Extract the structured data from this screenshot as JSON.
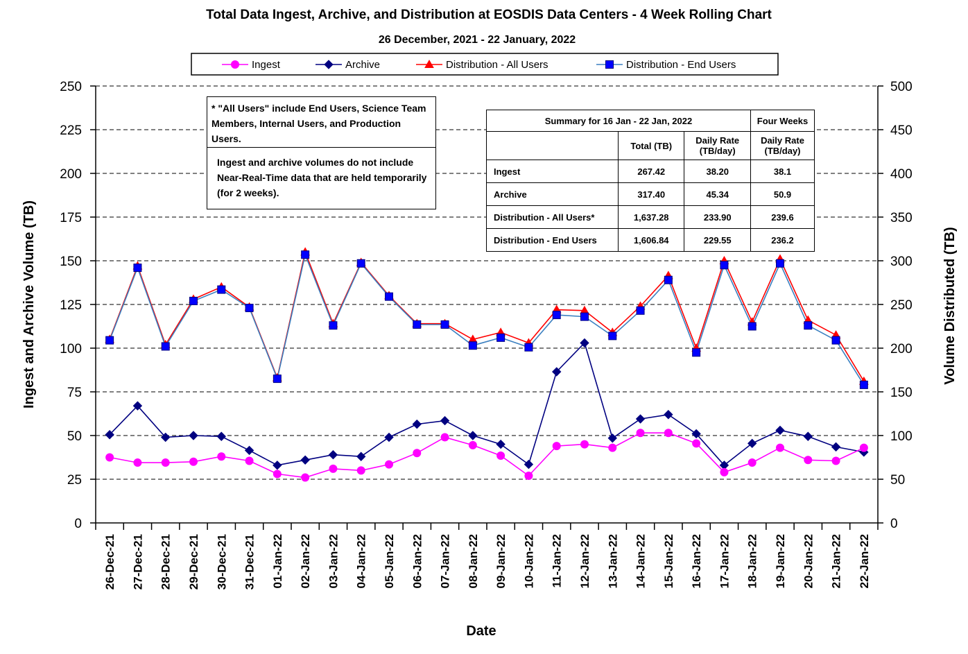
{
  "chart_data": {
    "type": "line",
    "title": "Total Data Ingest, Archive, and  Distribution at EOSDIS Data Centers - 4 Week Rolling Chart",
    "subtitle": "26  December,  2021  -  22  January, 2022",
    "xlabel": "Date",
    "ylabel_left": "Ingest and Archive Volume (TB)",
    "ylabel_right": "Volume Distributed (TB)",
    "ylim_left": [
      0,
      250
    ],
    "ylim_right": [
      0,
      500
    ],
    "yticks_left": [
      "0",
      "25",
      "50",
      "75",
      "100",
      "125",
      "150",
      "175",
      "200",
      "225",
      "250"
    ],
    "yticks_right": [
      "0",
      "50",
      "100",
      "150",
      "200",
      "250",
      "300",
      "350",
      "400",
      "450",
      "500"
    ],
    "legend_placement": "top",
    "categories": [
      "26-Dec-21",
      "27-Dec-21",
      "28-Dec-21",
      "29-Dec-21",
      "30-Dec-21",
      "31-Dec-21",
      "01-Jan-22",
      "02-Jan-22",
      "03-Jan-22",
      "04-Jan-22",
      "05-Jan-22",
      "06-Jan-22",
      "07-Jan-22",
      "08-Jan-22",
      "09-Jan-22",
      "10-Jan-22",
      "11-Jan-22",
      "12-Jan-22",
      "13-Jan-22",
      "14-Jan-22",
      "15-Jan-22",
      "16-Jan-22",
      "17-Jan-22",
      "18-Jan-22",
      "19-Jan-22",
      "20-Jan-22",
      "21-Jan-22",
      "22-Jan-22"
    ],
    "series": [
      {
        "name": "Ingest",
        "axis": "left",
        "color": "#ff00ff",
        "marker": "circle",
        "values": [
          37.5,
          34.5,
          34.5,
          35,
          38,
          35.5,
          28,
          26,
          31,
          30,
          33.5,
          40,
          49,
          44.5,
          38.5,
          27,
          44,
          45,
          43,
          51.5,
          51.5,
          45.5,
          29,
          34.5,
          43,
          36,
          35.5,
          43
        ]
      },
      {
        "name": "Archive",
        "axis": "left",
        "color": "#000080",
        "marker": "diamond",
        "values": [
          50.5,
          67,
          49,
          50,
          49.5,
          41.5,
          33,
          36,
          39,
          38,
          49,
          56.5,
          58.5,
          50,
          45,
          33.5,
          86.5,
          103,
          48.5,
          59.5,
          62,
          51,
          33,
          45.5,
          53,
          49.5,
          43.5,
          40.5
        ]
      },
      {
        "name": "Distribution - All Users",
        "axis": "right",
        "color": "#ff0000",
        "marker": "triangle",
        "values": [
          210,
          294,
          204,
          256,
          270,
          247,
          166,
          310,
          228,
          298,
          260,
          228,
          228,
          210,
          218,
          206,
          244,
          243,
          218,
          248,
          283,
          200,
          300,
          230,
          302,
          232,
          215,
          162
        ]
      },
      {
        "name": "Distribution - End Users",
        "axis": "right",
        "color": "#0000ff",
        "line_color": "#3a7fc0",
        "marker": "square",
        "values": [
          209,
          292,
          202,
          254,
          267,
          246,
          165,
          307,
          226,
          297,
          259,
          227,
          227,
          203,
          212,
          201,
          238,
          236,
          214,
          243,
          278,
          195,
          295,
          225,
          297,
          226,
          209,
          158
        ]
      }
    ],
    "annotations": {
      "note_all_users": "* \"All Users\" include End Users, Science Team Members,  Internal Users, and Production Users.",
      "note_nrt": "Ingest and archive volumes do not include Near-Real-Time data that are held temporarily (for 2 weeks)."
    },
    "summary_table": {
      "title": "Summary  for  16  Jan  -  22  Jan,  2022",
      "four_weeks_header": "Four Weeks",
      "col_total": "Total (TB)",
      "col_daily": "Daily Rate (TB/day)",
      "col_four_weeks": "Daily Rate (TB/day)",
      "rows": [
        {
          "label": "Ingest",
          "total": "267.42",
          "daily": "38.20",
          "four_weeks": "38.1"
        },
        {
          "label": "Archive",
          "total": "317.40",
          "daily": "45.34",
          "four_weeks": "50.9"
        },
        {
          "label": "Distribution - All Users*",
          "total": "1,637.28",
          "daily": "233.90",
          "four_weeks": "239.6"
        },
        {
          "label": "Distribution - End Users",
          "total": "1,606.84",
          "daily": "229.55",
          "four_weeks": "236.2"
        }
      ]
    }
  }
}
